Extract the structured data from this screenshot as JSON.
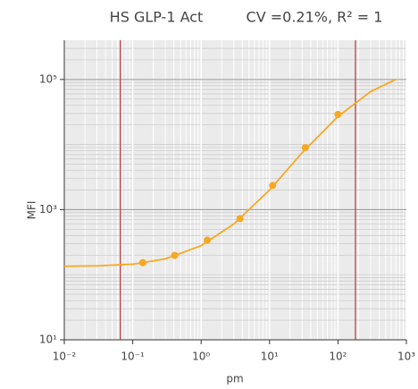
{
  "chart_data": {
    "type": "scatter",
    "title": "HS GLP-1 Act",
    "subtitle": "CV =0.21%, R² = 1",
    "x_label": "pm",
    "y_label": "MFI",
    "xscale": "log",
    "yscale": "log",
    "xlim": [
      0.01,
      1000
    ],
    "ylim": [
      10,
      400000
    ],
    "xticks": [
      {
        "value": 0.01,
        "label": "10⁻²"
      },
      {
        "value": 0.1,
        "label": "10⁻¹"
      },
      {
        "value": 1,
        "label": "10⁰"
      },
      {
        "value": 10,
        "label": "10¹"
      },
      {
        "value": 100,
        "label": "10²"
      },
      {
        "value": 1000,
        "label": "10³"
      }
    ],
    "yticks": [
      {
        "value": 10,
        "label": "10¹"
      },
      {
        "value": 1000,
        "label": "10³"
      },
      {
        "value": 100000,
        "label": "10⁵"
      }
    ],
    "grid": true,
    "minor_grid": true,
    "points": {
      "color": "#f7a823",
      "x": [
        0.14,
        0.41,
        1.23,
        3.7,
        11.1,
        33.3,
        100
      ],
      "values": [
        153,
        198,
        340,
        728,
        2356,
        8950,
        28970
      ]
    },
    "curve": {
      "color": "#f7a823",
      "x": [
        0.01,
        0.03,
        0.1,
        0.3,
        1,
        3,
        10,
        30,
        100,
        300,
        700
      ],
      "values": [
        135,
        137,
        145,
        175,
        280,
        600,
        2000,
        7500,
        27000,
        65000,
        100000
      ]
    },
    "reference_lines": {
      "color": "#b5303a",
      "x": [
        0.066,
        180
      ]
    }
  }
}
